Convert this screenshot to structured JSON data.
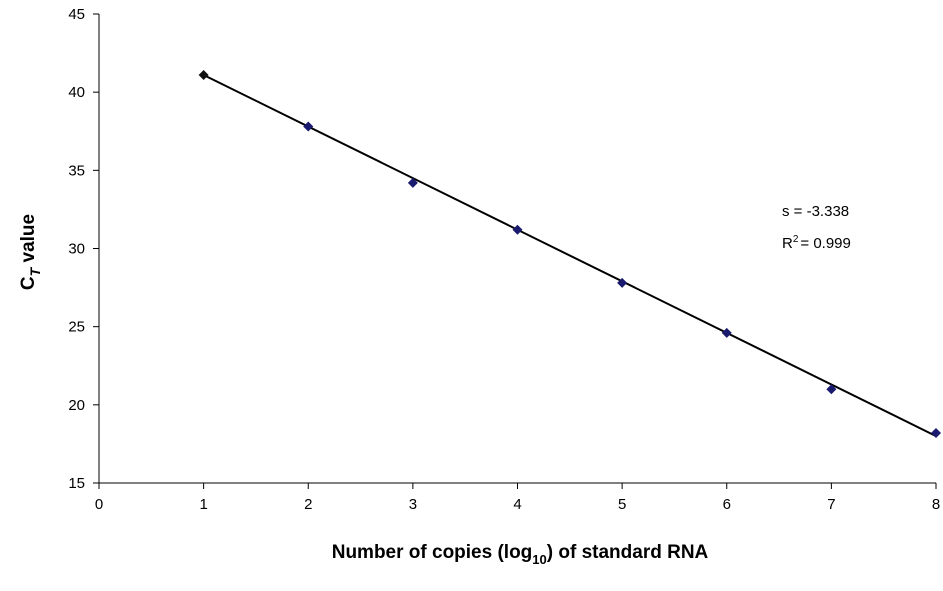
{
  "chart_data": {
    "type": "scatter",
    "title": "",
    "xlabel": {
      "main": "Number of copies (log",
      "sub": "10",
      "tail": ") of standard RNA"
    },
    "ylabel": {
      "main": "C",
      "sub": "T",
      "tail": " value"
    },
    "xlim": [
      0,
      8
    ],
    "ylim": [
      15,
      45
    ],
    "x_ticks": [
      0,
      1,
      2,
      3,
      4,
      5,
      6,
      7,
      8
    ],
    "y_ticks": [
      15,
      20,
      25,
      30,
      35,
      40,
      45
    ],
    "grid": false,
    "legend": "none",
    "series": [
      {
        "x": [
          1,
          2,
          3,
          4,
          5,
          6,
          7,
          8
        ],
        "y": [
          41.1,
          37.8,
          34.2,
          31.2,
          27.8,
          24.6,
          21.0,
          18.2
        ],
        "color": "#1a1a6e",
        "marker": "diamond"
      }
    ],
    "trendline": {
      "type": "linear",
      "x": [
        1,
        8
      ],
      "y": [
        41.1,
        18.0
      ],
      "color": "#000000"
    },
    "annotations": {
      "slope": "s = -3.338",
      "r2_label": "R",
      "r2_sup": "2",
      "r2_value": "= 0.999"
    }
  }
}
